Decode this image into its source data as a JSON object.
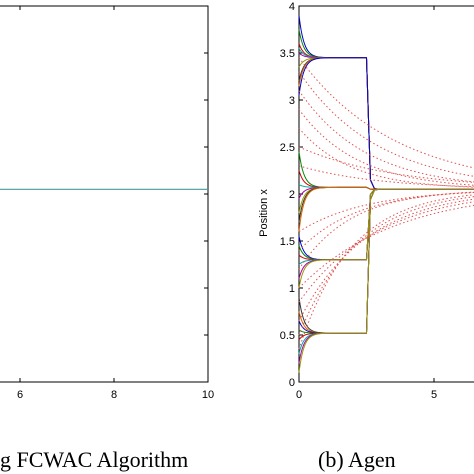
{
  "chart_data": [
    {
      "type": "line",
      "title": "",
      "xlabel": "",
      "ylabel": "",
      "xlim": [
        3.2,
        10
      ],
      "ylim": [
        0,
        4
      ],
      "x_ticks": [
        6,
        8,
        10
      ],
      "grid": false,
      "series": [
        {
          "color": "#4a9a9a",
          "x": [
            3.2,
            10
          ],
          "y": [
            2.05,
            2.05
          ]
        }
      ],
      "caption": "g FCWAC Algorithm"
    },
    {
      "type": "line",
      "title": "",
      "xlabel": "",
      "ylabel": "Position x",
      "xlim": [
        0,
        8.4
      ],
      "ylim": [
        0,
        4
      ],
      "x_ticks": [
        0,
        5
      ],
      "y_ticks": [
        0,
        0.5,
        1,
        1.5,
        2,
        2.5,
        3,
        3.5,
        4
      ],
      "grid": false,
      "switch_time": 2.5,
      "consensus_value": 2.05,
      "solid_groups": [
        {
          "target": 3.45,
          "initial": [
            3.9,
            3.75,
            3.6,
            3.55,
            3.5,
            3.35,
            3.2,
            3.15,
            3.05
          ],
          "final": 2.05
        },
        {
          "target": 2.07,
          "initial": [
            2.45,
            2.25,
            2.1,
            1.95,
            1.8,
            1.7,
            1.6
          ],
          "final": 2.05
        },
        {
          "target": 1.3,
          "initial": [
            1.55,
            1.45,
            1.35,
            1.25,
            1.1,
            1.0
          ],
          "final": 2.05
        },
        {
          "target": 0.52,
          "initial": [
            0.9,
            0.75,
            0.65,
            0.55,
            0.45,
            0.3,
            0.2,
            0.1
          ],
          "final": 2.05
        }
      ],
      "dotted_initial": [
        3.45,
        3.3,
        3.1,
        2.9,
        2.7,
        2.5,
        2.3,
        1.6,
        1.4,
        1.2,
        1.0,
        0.85,
        0.65,
        0.5,
        0.35
      ],
      "dotted_final": 2.05,
      "caption": "(b)  Agen"
    }
  ]
}
